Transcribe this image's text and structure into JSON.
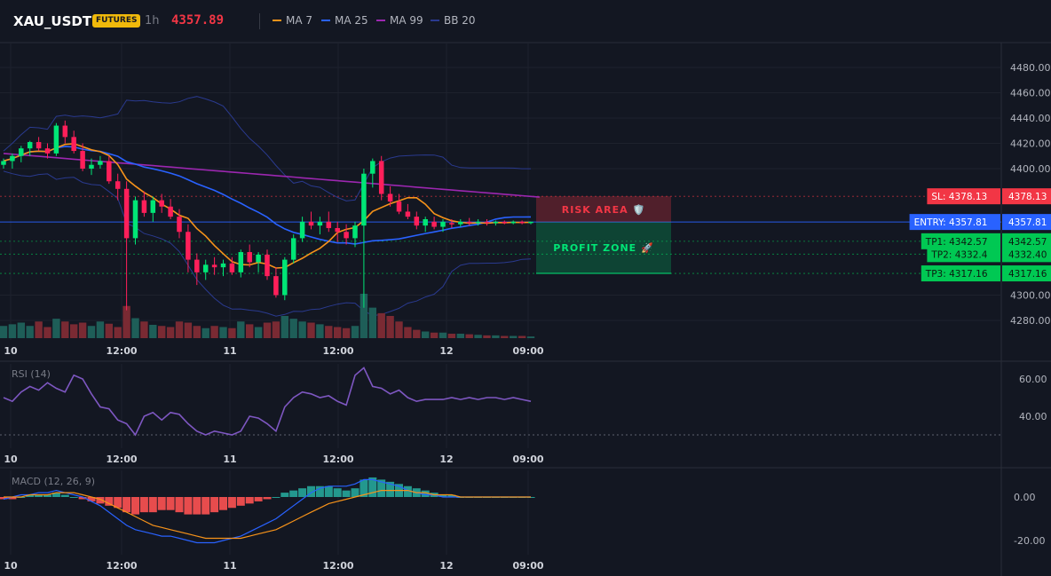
{
  "header": {
    "symbol": "XAU_USDT",
    "badge": "FUTURES",
    "timeframe": "1h",
    "price": "4357.89",
    "legend": [
      {
        "name": "MA 7",
        "color": "#f7931a"
      },
      {
        "name": "MA 25",
        "color": "#2962ff"
      },
      {
        "name": "MA 99",
        "color": "#9c27b0"
      },
      {
        "name": "BB 20",
        "color": "#2a3a8f"
      }
    ]
  },
  "chart_data": [
    {
      "type": "candlestick",
      "ylim": [
        4265,
        4495
      ],
      "y_ticks": [
        "4480.00",
        "4460.00",
        "4440.00",
        "4420.00",
        "4400.00",
        "4300.00",
        "4280.00"
      ],
      "x_ticks": [
        "10",
        "12:00",
        "11",
        "12:00",
        "12",
        "09:00"
      ],
      "candles": [
        [
          4403,
          4408,
          4400,
          4406
        ],
        [
          4406,
          4412,
          4400,
          4410
        ],
        [
          4410,
          4418,
          4405,
          4416
        ],
        [
          4416,
          4422,
          4410,
          4421
        ],
        [
          4421,
          4425,
          4414,
          4416
        ],
        [
          4416,
          4420,
          4408,
          4412
        ],
        [
          4412,
          4436,
          4410,
          4434
        ],
        [
          4434,
          4438,
          4420,
          4425
        ],
        [
          4425,
          4430,
          4412,
          4414
        ],
        [
          4414,
          4420,
          4398,
          4400
        ],
        [
          4400,
          4408,
          4395,
          4403
        ],
        [
          4403,
          4410,
          4400,
          4406
        ],
        [
          4406,
          4410,
          4388,
          4390
        ],
        [
          4390,
          4396,
          4375,
          4384
        ],
        [
          4384,
          4390,
          4288,
          4345
        ],
        [
          4345,
          4378,
          4340,
          4375
        ],
        [
          4375,
          4382,
          4362,
          4365
        ],
        [
          4365,
          4378,
          4358,
          4375
        ],
        [
          4375,
          4380,
          4365,
          4370
        ],
        [
          4370,
          4376,
          4360,
          4362
        ],
        [
          4362,
          4368,
          4345,
          4350
        ],
        [
          4350,
          4356,
          4318,
          4328
        ],
        [
          4328,
          4333,
          4308,
          4318
        ],
        [
          4318,
          4328,
          4312,
          4324
        ],
        [
          4324,
          4330,
          4316,
          4322
        ],
        [
          4322,
          4328,
          4315,
          4325
        ],
        [
          4325,
          4330,
          4316,
          4318
        ],
        [
          4318,
          4336,
          4314,
          4334
        ],
        [
          4334,
          4340,
          4322,
          4326
        ],
        [
          4326,
          4334,
          4318,
          4332
        ],
        [
          4332,
          4336,
          4312,
          4315
        ],
        [
          4315,
          4322,
          4298,
          4300
        ],
        [
          4300,
          4330,
          4296,
          4328
        ],
        [
          4328,
          4348,
          4325,
          4345
        ],
        [
          4345,
          4362,
          4342,
          4358
        ],
        [
          4358,
          4366,
          4352,
          4355
        ],
        [
          4355,
          4362,
          4348,
          4358
        ],
        [
          4358,
          4366,
          4350,
          4353
        ],
        [
          4353,
          4358,
          4342,
          4350
        ],
        [
          4350,
          4356,
          4340,
          4345
        ],
        [
          4345,
          4358,
          4338,
          4355
        ],
        [
          4355,
          4400,
          4290,
          4396
        ],
        [
          4396,
          4408,
          4385,
          4406
        ],
        [
          4406,
          4410,
          4375,
          4380
        ],
        [
          4380,
          4386,
          4370,
          4374
        ],
        [
          4374,
          4380,
          4364,
          4366
        ],
        [
          4366,
          4372,
          4360,
          4362
        ],
        [
          4362,
          4366,
          4352,
          4355
        ],
        [
          4355,
          4362,
          4350,
          4360
        ],
        [
          4358,
          4362,
          4352,
          4354
        ],
        [
          4354,
          4360,
          4350,
          4358
        ],
        [
          4357,
          4360,
          4353,
          4356
        ],
        [
          4356,
          4360,
          4354,
          4358
        ],
        [
          4358,
          4361,
          4355,
          4357
        ],
        [
          4357,
          4360,
          4355,
          4358
        ],
        [
          4358,
          4360,
          4355,
          4357
        ],
        [
          4357,
          4359,
          4355,
          4358
        ],
        [
          4358,
          4359,
          4356,
          4357
        ],
        [
          4357,
          4359,
          4356,
          4358
        ],
        [
          4358,
          4359,
          4356,
          4357
        ],
        [
          4357,
          4358,
          4356,
          4358
        ]
      ],
      "volume": [
        22,
        25,
        28,
        22,
        30,
        20,
        35,
        30,
        25,
        28,
        22,
        30,
        26,
        20,
        58,
        36,
        30,
        24,
        22,
        20,
        30,
        28,
        22,
        18,
        22,
        20,
        18,
        30,
        25,
        20,
        28,
        30,
        40,
        35,
        30,
        28,
        25,
        22,
        20,
        18,
        22,
        80,
        55,
        45,
        40,
        30,
        20,
        15,
        12,
        10,
        10,
        8,
        8,
        7,
        6,
        5,
        5,
        4,
        4,
        4,
        3
      ],
      "levels": [
        {
          "label": "SL: 4378.13",
          "value": "4378.13",
          "color": "#f23645"
        },
        {
          "label": "ENTRY: 4357.81",
          "value": "4357.81",
          "color": "#2962ff"
        },
        {
          "label": "TP1: 4342.57",
          "value": "4342.57",
          "color": "#00c853"
        },
        {
          "label": "TP2: 4332.4",
          "value": "4332.40",
          "color": "#00c853"
        },
        {
          "label": "TP3: 4317.16",
          "value": "4317.16",
          "color": "#00c853"
        }
      ],
      "zones": [
        {
          "label": "RISK AREA 🛡️",
          "color": "#f23645"
        },
        {
          "label": "PROFIT ZONE 🚀",
          "color": "#00e676"
        }
      ]
    },
    {
      "type": "line",
      "label": "RSI (14)",
      "y_ticks": [
        "60.00",
        "40.00"
      ],
      "x_ticks": [
        "10",
        "12:00",
        "11",
        "12:00",
        "12",
        "09:00"
      ],
      "values": [
        50,
        48,
        53,
        56,
        54,
        58,
        55,
        53,
        62,
        60,
        52,
        45,
        44,
        38,
        36,
        30,
        40,
        42,
        38,
        42,
        41,
        36,
        32,
        30,
        32,
        31,
        30,
        32,
        40,
        39,
        36,
        32,
        45,
        50,
        53,
        52,
        50,
        51,
        48,
        46,
        62,
        66,
        56,
        55,
        52,
        54,
        50,
        48,
        49,
        49,
        49,
        50,
        49,
        50,
        49,
        50,
        50,
        49,
        50,
        49,
        48
      ],
      "color": "#7e57c2"
    },
    {
      "type": "macd",
      "label": "MACD (12, 26, 9)",
      "y_ticks": [
        "0.00",
        "-20.00"
      ],
      "x_ticks": [
        "10",
        "12:00",
        "11",
        "12:00",
        "12",
        "09:00"
      ],
      "histogram": [
        -1,
        -1,
        0,
        1,
        1,
        1,
        2,
        1,
        0,
        -1,
        -2,
        -3,
        -4,
        -5,
        -7,
        -8,
        -7,
        -7,
        -6,
        -6,
        -7,
        -8,
        -8,
        -8,
        -7,
        -6,
        -5,
        -4,
        -3,
        -2,
        -1,
        0,
        2,
        3,
        4,
        5,
        5,
        5,
        4,
        3,
        4,
        8,
        9,
        8,
        7,
        6,
        5,
        4,
        3,
        2,
        1,
        1,
        0,
        0,
        0,
        0,
        0,
        0,
        0,
        0,
        0
      ],
      "macd": [
        -1,
        0,
        1,
        1,
        2,
        2,
        3,
        2,
        1,
        0,
        -2,
        -4,
        -7,
        -10,
        -13,
        -15,
        -16,
        -17,
        -18,
        -18,
        -19,
        -20,
        -21,
        -21,
        -21,
        -20,
        -19,
        -18,
        -16,
        -14,
        -12,
        -10,
        -7,
        -4,
        -1,
        2,
        4,
        5,
        5,
        5,
        6,
        8,
        8,
        7,
        6,
        5,
        3,
        2,
        1,
        1,
        0,
        0,
        0,
        0,
        0,
        0,
        0,
        0,
        0,
        0,
        0
      ],
      "signal": [
        0,
        0,
        0,
        1,
        1,
        1,
        2,
        2,
        2,
        1,
        0,
        -1,
        -3,
        -5,
        -7,
        -9,
        -11,
        -13,
        -14,
        -15,
        -16,
        -17,
        -18,
        -19,
        -19,
        -19,
        -19,
        -19,
        -18,
        -17,
        -16,
        -15,
        -13,
        -11,
        -9,
        -7,
        -5,
        -3,
        -2,
        -1,
        0,
        1,
        2,
        3,
        3,
        3,
        3,
        2,
        2,
        1,
        1,
        1,
        0,
        0,
        0,
        0,
        0,
        0,
        0,
        0,
        0
      ],
      "macd_color": "#2962ff",
      "signal_color": "#f7931a"
    }
  ]
}
